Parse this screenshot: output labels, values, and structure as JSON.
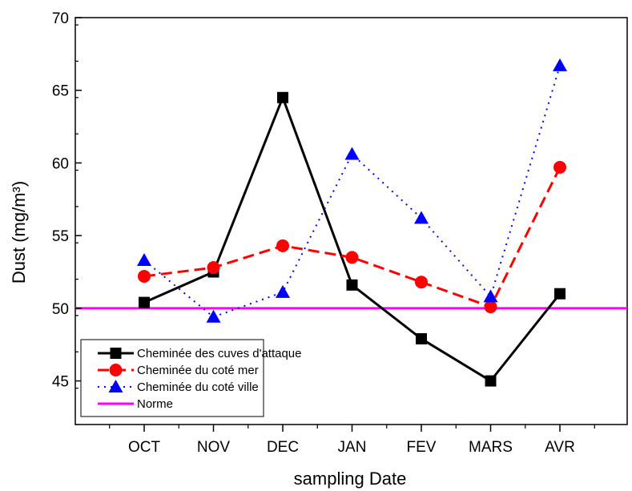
{
  "chart_data": {
    "type": "line",
    "title": "",
    "xlabel": "sampling Date",
    "ylabel": "Dust (mg/m³)",
    "categories": [
      "OCT",
      "NOV",
      "DEC",
      "JAN",
      "FEV",
      "MARS",
      "AVR"
    ],
    "ylim": [
      42,
      70
    ],
    "yticks": [
      45,
      50,
      55,
      60,
      65,
      70
    ],
    "grid": false,
    "legend_position": "bottom-left",
    "series": [
      {
        "name": "Cheminée des cuves d'attaque",
        "values": [
          50.4,
          52.5,
          64.5,
          51.6,
          47.9,
          45.0,
          51.0
        ],
        "color": "#000000",
        "line_style": "solid",
        "marker": "square"
      },
      {
        "name": "Cheminée du coté mer",
        "values": [
          52.2,
          52.8,
          54.3,
          53.5,
          51.8,
          50.1,
          59.7
        ],
        "color": "#ff0000",
        "line_style": "dashed",
        "marker": "circle"
      },
      {
        "name": "Cheminée du coté ville",
        "values": [
          53.3,
          49.4,
          51.1,
          60.6,
          56.2,
          50.8,
          66.7
        ],
        "color": "#0000ff",
        "line_style": "dotted",
        "marker": "triangle"
      }
    ],
    "reference_line": {
      "name": "Norme",
      "value": 50,
      "color": "#ff00ff"
    }
  }
}
